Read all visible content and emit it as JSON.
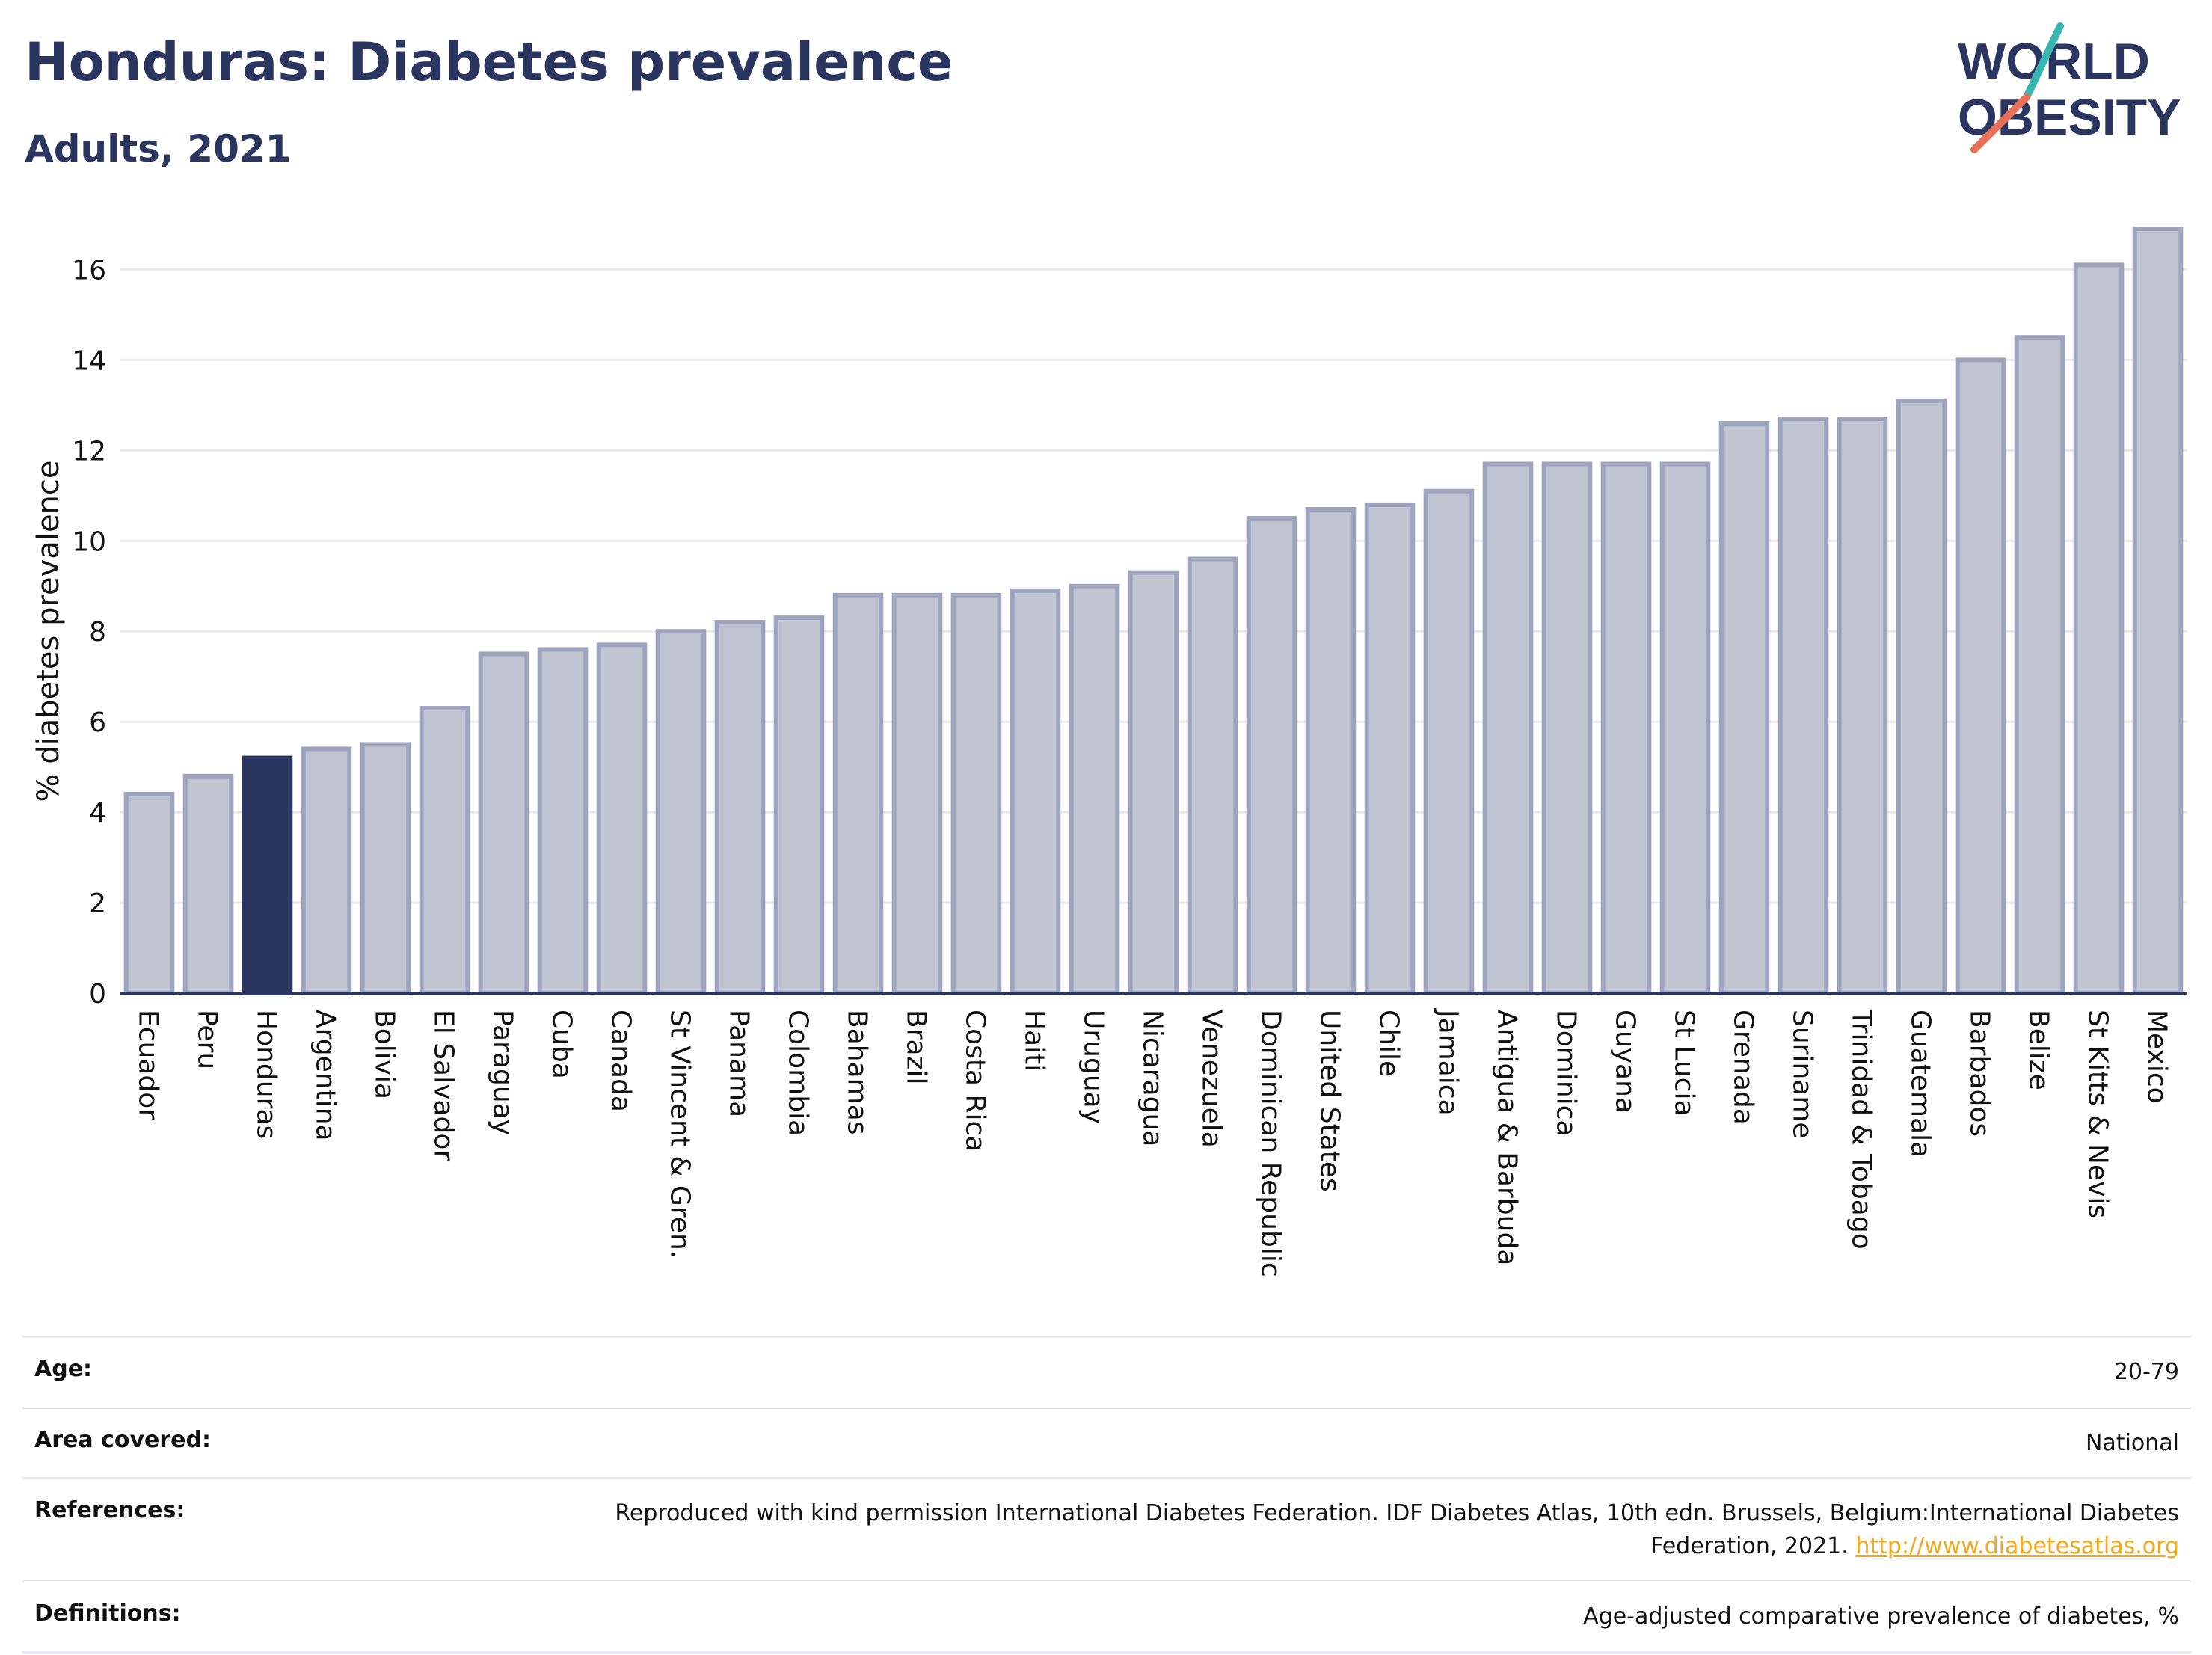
{
  "header": {
    "title": "Honduras: Diabetes prevalence",
    "subtitle": "Adults, 2021"
  },
  "logo": {
    "line1": "WORLD",
    "line2": "OBESITY",
    "colors": {
      "text": "#2a365f",
      "stroke_top": "#37b6b1",
      "stroke_bottom": "#e8705a"
    }
  },
  "chart_data": {
    "type": "bar",
    "title": "",
    "xlabel": "",
    "ylabel": "% diabetes prevalence",
    "ylim": [
      0,
      17
    ],
    "yticks": [
      0,
      2,
      4,
      6,
      8,
      10,
      12,
      14,
      16
    ],
    "grid": true,
    "highlight": "Honduras",
    "colors": {
      "bar": "#c0c4d0",
      "bar_edge": "#9ea4bd",
      "highlight": "#2a365f",
      "grid": "#e6e8ee",
      "axis": "#2a365f"
    },
    "categories": [
      "Ecuador",
      "Peru",
      "Honduras",
      "Argentina",
      "Bolivia",
      "El Salvador",
      "Paraguay",
      "Cuba",
      "Canada",
      "St Vincent & Gren.",
      "Panama",
      "Colombia",
      "Bahamas",
      "Brazil",
      "Costa Rica",
      "Haiti",
      "Uruguay",
      "Nicaragua",
      "Venezuela",
      "Dominican Republic",
      "United States",
      "Chile",
      "Jamaica",
      "Antigua & Barbuda",
      "Dominica",
      "Guyana",
      "St Lucia",
      "Grenada",
      "Suriname",
      "Trinidad & Tobago",
      "Guatemala",
      "Barbados",
      "Belize",
      "St Kitts & Nevis",
      "Mexico"
    ],
    "values": [
      4.4,
      4.8,
      5.2,
      5.4,
      5.5,
      6.3,
      7.5,
      7.6,
      7.7,
      8.0,
      8.2,
      8.3,
      8.8,
      8.8,
      8.8,
      8.9,
      9.0,
      9.3,
      9.6,
      10.5,
      10.7,
      10.8,
      11.1,
      11.7,
      11.7,
      11.7,
      11.7,
      12.6,
      12.7,
      12.7,
      13.1,
      14.0,
      14.5,
      16.1,
      16.9
    ]
  },
  "info": {
    "rows": [
      {
        "label": "Age:",
        "value": "20-79"
      },
      {
        "label": "Area covered:",
        "value": "National"
      },
      {
        "label": "References:",
        "value": "Reproduced with kind permission International Diabetes Federation.  IDF Diabetes Atlas, 10th edn. Brussels, Belgium:International Diabetes Federation, 2021.",
        "link": "http://www.diabetesatlas.org"
      },
      {
        "label": "Definitions:",
        "value": "Age-adjusted comparative prevalence of diabetes, %"
      }
    ]
  }
}
